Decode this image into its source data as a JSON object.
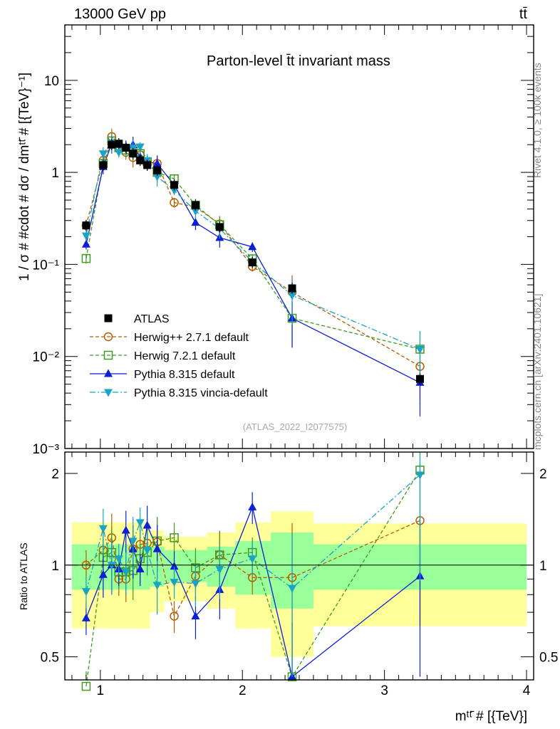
{
  "header": {
    "left": "13000 GeV pp",
    "right": "tt̄"
  },
  "side": {
    "rivet": "Rivet 4.1.0, ≥ 100k events",
    "mcplots": "mcplots.cern.ch [arXiv:2401.10621]"
  },
  "chart_data": {
    "type": "scatter",
    "title": "Parton-level t̄t invariant mass",
    "analysis_id": "(ATLAS_2022_I2077575)",
    "xlabel": "mᵗᵗ̄ # [{TeV}]",
    "ylabel": "1 / σ # #cdot # dσ / dmᵗᵗ̄ # [{TeV}⁻¹]",
    "ratio_ylabel": "Ratio to ATLAS",
    "xlim": [
      0.75,
      4.05
    ],
    "ylim": [
      0.001,
      40
    ],
    "ratio_ylim": [
      0.42,
      2.35
    ],
    "x_ticks": [
      1,
      2,
      3,
      4
    ],
    "x_tick_labels": [
      "1",
      "2",
      "3",
      "4"
    ],
    "y_ticks": [
      0.001,
      0.01,
      0.1,
      1,
      10
    ],
    "y_tick_labels": [
      "10⁻³",
      "10⁻²",
      "10⁻¹",
      "1",
      "10"
    ],
    "ratio_ticks": [
      0.5,
      1,
      2
    ],
    "ratio_tick_labels": [
      "0.5",
      "1",
      "2"
    ],
    "reference": {
      "name": "ATLAS",
      "bins": [
        [
          0.8,
          0.95
        ],
        [
          0.95,
          1.05
        ],
        [
          1.05,
          1.1
        ],
        [
          1.1,
          1.15
        ],
        [
          1.15,
          1.2
        ],
        [
          1.2,
          1.25
        ],
        [
          1.25,
          1.3
        ],
        [
          1.3,
          1.35
        ],
        [
          1.35,
          1.45
        ],
        [
          1.45,
          1.6
        ],
        [
          1.6,
          1.75
        ],
        [
          1.75,
          1.95
        ],
        [
          1.95,
          2.2
        ],
        [
          2.2,
          2.5
        ],
        [
          2.5,
          4.0
        ]
      ],
      "x": [
        0.9,
        1.02,
        1.08,
        1.13,
        1.18,
        1.23,
        1.28,
        1.33,
        1.4,
        1.52,
        1.67,
        1.84,
        2.07,
        2.35,
        3.25
      ],
      "y": [
        0.265,
        1.2,
        2.0,
        2.05,
        1.85,
        1.6,
        1.35,
        1.2,
        1.05,
        0.73,
        0.44,
        0.255,
        0.105,
        0.055,
        0.0057
      ],
      "band_inner": [
        0.17,
        0.17,
        0.17,
        0.17,
        0.17,
        0.17,
        0.17,
        0.17,
        0.15,
        0.12,
        0.12,
        0.15,
        0.2,
        0.28,
        0.17
      ],
      "band_outer": [
        0.38,
        0.38,
        0.38,
        0.38,
        0.38,
        0.38,
        0.38,
        0.38,
        0.3,
        0.24,
        0.24,
        0.28,
        0.38,
        0.5,
        0.37
      ],
      "color": "#000000"
    },
    "series": [
      {
        "name": "Herwig++ 2.7.1 default",
        "color": "#b85c00",
        "marker": "circle",
        "dash": "5,3",
        "y": [
          0.265,
          1.35,
          2.45,
          1.85,
          1.65,
          1.45,
          1.55,
          1.25,
          1.25,
          0.47,
          0.42,
          0.275,
          0.095,
          0.05,
          0.0078
        ],
        "ratio": [
          1.0,
          1.12,
          1.23,
          0.9,
          0.9,
          1.13,
          1.17,
          1.18,
          1.19,
          0.68,
          0.92,
          1.08,
          0.91,
          0.91,
          1.4
        ]
      },
      {
        "name": "Herwig 7.2.1 default",
        "color": "#3f9a1f",
        "marker": "square",
        "dash": "5,3",
        "y": [
          0.116,
          1.25,
          2.2,
          1.85,
          1.75,
          1.7,
          1.6,
          1.3,
          1.0,
          0.85,
          0.44,
          0.27,
          0.115,
          0.026,
          0.012
        ],
        "ratio": [
          0.4,
          1.06,
          1.1,
          0.95,
          0.95,
          0.96,
          1.05,
          1.1,
          1.2,
          1.23,
          0.98,
          1.08,
          1.1,
          0.43,
          2.05
        ]
      },
      {
        "name": "Pythia 8.315 default",
        "color": "#0a1fd6",
        "marker": "triangle-up",
        "dash": "",
        "y": [
          0.165,
          1.15,
          2.05,
          2.0,
          1.9,
          2.0,
          1.45,
          1.3,
          1.25,
          0.73,
          0.285,
          0.195,
          0.155,
          0.026,
          0.0052
        ],
        "ratio": [
          0.67,
          0.93,
          1.0,
          0.97,
          1.3,
          1.13,
          0.97,
          1.35,
          1.13,
          0.99,
          0.68,
          0.83,
          1.55,
          0.43,
          0.92
        ]
      },
      {
        "name": "Pythia 8.315 vincia-default",
        "color": "#19a3c4",
        "marker": "triangle-down",
        "dash": "8,3,2,3",
        "y": [
          0.205,
          1.6,
          2.1,
          1.65,
          1.8,
          1.85,
          1.9,
          1.35,
          0.9,
          0.64,
          0.38,
          0.245,
          0.107,
          0.046,
          0.012
        ],
        "ratio": [
          0.82,
          1.32,
          1.0,
          1.05,
          0.95,
          1.2,
          1.38,
          1.12,
          0.86,
          0.88,
          0.87,
          0.97,
          1.05,
          0.84,
          1.98
        ]
      }
    ]
  }
}
